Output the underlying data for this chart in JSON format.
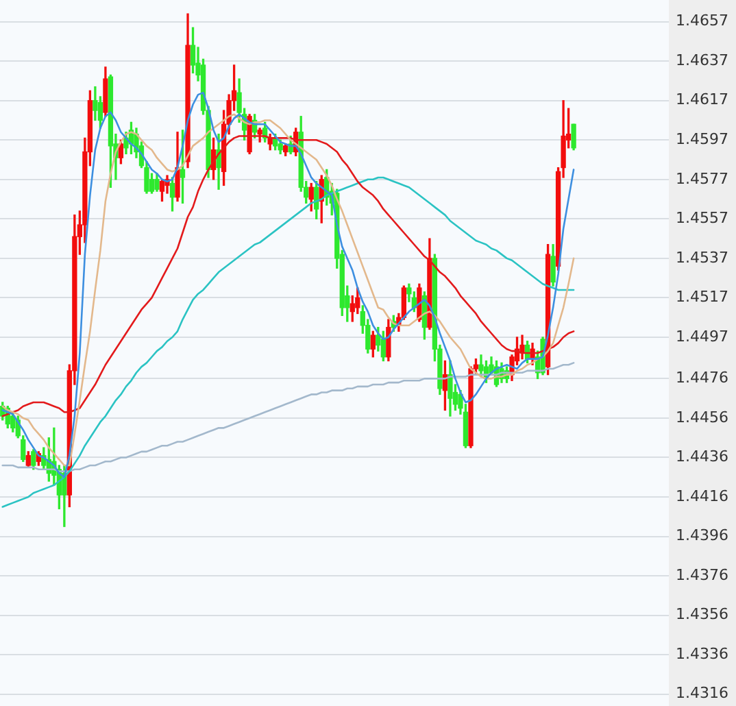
{
  "chart_data": {
    "type": "candlestick",
    "categories": [
      null,
      null,
      null,
      null,
      null,
      null,
      null,
      null,
      null,
      null,
      null,
      null,
      null,
      null,
      null,
      null,
      null,
      null,
      null,
      null,
      null,
      null,
      null,
      null,
      null,
      null,
      null,
      null,
      null,
      null,
      null,
      null,
      null,
      null,
      null,
      null,
      null,
      null,
      null,
      null,
      null,
      null,
      null,
      null,
      null,
      null,
      null,
      null,
      null,
      null,
      null,
      null,
      null,
      null,
      null,
      null,
      null,
      null,
      null,
      null,
      null,
      null,
      null,
      null,
      null,
      null,
      null,
      null,
      null,
      null,
      null,
      null,
      null,
      null,
      null,
      null,
      null,
      null,
      null,
      null,
      null,
      null,
      null,
      null,
      null,
      null,
      null,
      null,
      null,
      null,
      null,
      null,
      null,
      null,
      null,
      null,
      null,
      null,
      null,
      null,
      null,
      null,
      null,
      null,
      null,
      null,
      null,
      null,
      null,
      null,
      null,
      null,
      null,
      null,
      null,
      null,
      null,
      null,
      null,
      null,
      null,
      null,
      null,
      null,
      null,
      null,
      null,
      null,
      null,
      null
    ],
    "ohlc": [
      [
        1.4462,
        1.4464,
        1.4455,
        1.4457
      ],
      [
        1.4461,
        1.4462,
        1.4451,
        1.4453
      ],
      [
        1.4457,
        1.4459,
        1.4449,
        1.4451
      ],
      [
        1.4455,
        1.4457,
        1.4446,
        1.4447
      ],
      [
        1.4445,
        1.4447,
        1.4434,
        1.4435
      ],
      [
        1.4432,
        1.4439,
        1.4431,
        1.4437
      ],
      [
        1.4439,
        1.444,
        1.443,
        1.4432
      ],
      [
        1.4434,
        1.4439,
        1.4432,
        1.4438
      ],
      [
        1.4437,
        1.4441,
        1.443,
        1.4432
      ],
      [
        1.4435,
        1.4446,
        1.4424,
        1.4428
      ],
      [
        1.4434,
        1.4451,
        1.4422,
        1.4427
      ],
      [
        1.443,
        1.4432,
        1.441,
        1.4417
      ],
      [
        1.4428,
        1.4432,
        1.4401,
        1.4417
      ],
      [
        1.4417,
        1.4483,
        1.4411,
        1.448
      ],
      [
        1.448,
        1.4559,
        1.4473,
        1.4548
      ],
      [
        1.4548,
        1.4561,
        1.4539,
        1.4554
      ],
      [
        1.4554,
        1.4598,
        1.4545,
        1.4591
      ],
      [
        1.4591,
        1.4622,
        1.4584,
        1.4617
      ],
      [
        1.4617,
        1.4624,
        1.4607,
        1.4612
      ],
      [
        1.4616,
        1.4619,
        1.4603,
        1.4607
      ],
      [
        1.4611,
        1.4634,
        1.4609,
        1.4628
      ],
      [
        1.4629,
        1.463,
        1.4573,
        1.4594
      ],
      [
        1.4595,
        1.46,
        1.4577,
        1.4588
      ],
      [
        1.4588,
        1.4597,
        1.4585,
        1.4595
      ],
      [
        1.4598,
        1.4601,
        1.459,
        1.4593
      ],
      [
        1.4602,
        1.4606,
        1.459,
        1.4595
      ],
      [
        1.46,
        1.4603,
        1.4588,
        1.4591
      ],
      [
        1.4594,
        1.4596,
        1.4583,
        1.4584
      ],
      [
        1.4583,
        1.4586,
        1.457,
        1.4571
      ],
      [
        1.4577,
        1.458,
        1.457,
        1.4571
      ],
      [
        1.4577,
        1.458,
        1.4571,
        1.4572
      ],
      [
        1.4571,
        1.4577,
        1.4566,
        1.4576
      ],
      [
        1.4574,
        1.4579,
        1.457,
        1.4577
      ],
      [
        1.4575,
        1.4578,
        1.4561,
        1.4568
      ],
      [
        1.4568,
        1.4601,
        1.4566,
        1.4583
      ],
      [
        1.4582,
        1.4602,
        1.4565,
        1.4578
      ],
      [
        1.4586,
        1.4661,
        1.4583,
        1.4645
      ],
      [
        1.4645,
        1.4654,
        1.4631,
        1.4635
      ],
      [
        1.4636,
        1.4644,
        1.4627,
        1.463
      ],
      [
        1.4635,
        1.4638,
        1.461,
        1.4612
      ],
      [
        1.4612,
        1.4614,
        1.4578,
        1.4582
      ],
      [
        1.4582,
        1.4598,
        1.4577,
        1.4592
      ],
      [
        1.4592,
        1.46,
        1.4572,
        1.4583
      ],
      [
        1.4581,
        1.4612,
        1.4574,
        1.4605
      ],
      [
        1.4605,
        1.462,
        1.46,
        1.4617
      ],
      [
        1.4617,
        1.4635,
        1.4612,
        1.4622
      ],
      [
        1.4621,
        1.4628,
        1.4606,
        1.4611
      ],
      [
        1.461,
        1.4613,
        1.4597,
        1.4602
      ],
      [
        1.4591,
        1.461,
        1.459,
        1.4609
      ],
      [
        1.4607,
        1.461,
        1.4598,
        1.4601
      ],
      [
        1.46,
        1.4603,
        1.4596,
        1.4602
      ],
      [
        1.4603,
        1.4606,
        1.4596,
        1.4598
      ],
      [
        1.4595,
        1.46,
        1.4592,
        1.4598
      ],
      [
        1.4598,
        1.46,
        1.4592,
        1.4594
      ],
      [
        1.4595,
        1.4597,
        1.459,
        1.4592
      ],
      [
        1.4591,
        1.4595,
        1.4589,
        1.4594
      ],
      [
        1.4595,
        1.4599,
        1.459,
        1.4591
      ],
      [
        1.4591,
        1.4603,
        1.4589,
        1.4601
      ],
      [
        1.4601,
        1.4609,
        1.4571,
        1.4573
      ],
      [
        1.4573,
        1.4576,
        1.4565,
        1.4568
      ],
      [
        1.4567,
        1.4575,
        1.4561,
        1.4573
      ],
      [
        1.4573,
        1.4576,
        1.4557,
        1.4562
      ],
      [
        1.4566,
        1.4579,
        1.4555,
        1.4577
      ],
      [
        1.4578,
        1.4582,
        1.4564,
        1.4568
      ],
      [
        1.4571,
        1.4575,
        1.4559,
        1.4565
      ],
      [
        1.457,
        1.4572,
        1.4532,
        1.4537
      ],
      [
        1.4539,
        1.4541,
        1.4508,
        1.4512
      ],
      [
        1.4518,
        1.4523,
        1.4505,
        1.4512
      ],
      [
        1.451,
        1.4518,
        1.4505,
        1.4514
      ],
      [
        1.4512,
        1.4522,
        1.4509,
        1.4517
      ],
      [
        1.451,
        1.4513,
        1.4499,
        1.4503
      ],
      [
        1.4503,
        1.4506,
        1.4489,
        1.4491
      ],
      [
        1.4491,
        1.45,
        1.4487,
        1.4498
      ],
      [
        1.4498,
        1.4502,
        1.449,
        1.4493
      ],
      [
        1.4496,
        1.45,
        1.4485,
        1.4487
      ],
      [
        1.4487,
        1.4506,
        1.4485,
        1.4502
      ],
      [
        1.4505,
        1.4508,
        1.45,
        1.4502
      ],
      [
        1.4503,
        1.4509,
        1.45,
        1.4507
      ],
      [
        1.4507,
        1.4523,
        1.4506,
        1.4522
      ],
      [
        1.4522,
        1.4524,
        1.4515,
        1.4519
      ],
      [
        1.4517,
        1.452,
        1.451,
        1.4512
      ],
      [
        1.4506,
        1.4524,
        1.4505,
        1.4522
      ],
      [
        1.4518,
        1.452,
        1.4496,
        1.4502
      ],
      [
        1.4502,
        1.4547,
        1.4501,
        1.4537
      ],
      [
        1.4537,
        1.4539,
        1.4485,
        1.4491
      ],
      [
        1.4491,
        1.4493,
        1.4468,
        1.4471
      ],
      [
        1.447,
        1.4485,
        1.446,
        1.4478
      ],
      [
        1.4478,
        1.4485,
        1.4457,
        1.4466
      ],
      [
        1.4469,
        1.4473,
        1.446,
        1.4463
      ],
      [
        1.4468,
        1.447,
        1.4458,
        1.4461
      ],
      [
        1.4459,
        1.4463,
        1.4441,
        1.4442
      ],
      [
        1.4442,
        1.4482,
        1.4441,
        1.4481
      ],
      [
        1.4481,
        1.4486,
        1.4478,
        1.4483
      ],
      [
        1.4483,
        1.4488,
        1.4477,
        1.448
      ],
      [
        1.4482,
        1.4485,
        1.4474,
        1.4476
      ],
      [
        1.4483,
        1.4487,
        1.4478,
        1.4479
      ],
      [
        1.4482,
        1.4485,
        1.4472,
        1.4473
      ],
      [
        1.4481,
        1.4484,
        1.4474,
        1.4476
      ],
      [
        1.448,
        1.4482,
        1.4474,
        1.4476
      ],
      [
        1.4478,
        1.4488,
        1.4475,
        1.4487
      ],
      [
        1.4485,
        1.4497,
        1.4483,
        1.4491
      ],
      [
        1.4489,
        1.4498,
        1.4486,
        1.4493
      ],
      [
        1.4493,
        1.4495,
        1.4484,
        1.4486
      ],
      [
        1.4486,
        1.4494,
        1.4483,
        1.4491
      ],
      [
        1.4487,
        1.449,
        1.4476,
        1.4479
      ],
      [
        1.4496,
        1.4497,
        1.4478,
        1.4479
      ],
      [
        1.4482,
        1.4544,
        1.4478,
        1.4539
      ],
      [
        1.4538,
        1.4544,
        1.4523,
        1.4525
      ],
      [
        1.4533,
        1.4583,
        1.4531,
        1.4581
      ],
      [
        1.4583,
        1.4617,
        1.4578,
        1.4599
      ],
      [
        1.4597,
        1.4613,
        1.4593,
        1.46
      ],
      [
        1.4605,
        1.4605,
        1.4592,
        1.4593
      ],
      null,
      null,
      null,
      null,
      null,
      null,
      null,
      null,
      null,
      null,
      null,
      null,
      null,
      null,
      null,
      null,
      null,
      null
    ],
    "colors": [
      "#2ee82e",
      "#2ee82e",
      "#2ee82e",
      "#2ee82e",
      "#2ee82e",
      "#f20d0d",
      "#2ee82e",
      "#f20d0d",
      "#2ee82e",
      "#2ee82e",
      "#2ee82e",
      "#2ee82e",
      "#2ee82e",
      "#f20d0d",
      "#f20d0d",
      "#f20d0d",
      "#f20d0d",
      "#f20d0d",
      "#2ee82e",
      "#2ee82e",
      "#f20d0d",
      "#2ee82e",
      "#2ee82e",
      "#f20d0d",
      "#2ee82e",
      "#2ee82e",
      "#2ee82e",
      "#2ee82e",
      "#2ee82e",
      "#2ee82e",
      "#2ee82e",
      "#f20d0d",
      "#f20d0d",
      "#2ee82e",
      "#f20d0d",
      "#2ee82e",
      "#f20d0d",
      "#2ee82e",
      "#2ee82e",
      "#2ee82e",
      "#2ee82e",
      "#f20d0d",
      "#2ee82e",
      "#f20d0d",
      "#f20d0d",
      "#f20d0d",
      "#2ee82e",
      "#2ee82e",
      "#f20d0d",
      "#2ee82e",
      "#f20d0d",
      "#2ee82e",
      "#f20d0d",
      "#2ee82e",
      "#2ee82e",
      "#f20d0d",
      "#2ee82e",
      "#f20d0d",
      "#2ee82e",
      "#2ee82e",
      "#f20d0d",
      "#2ee82e",
      "#f20d0d",
      "#2ee82e",
      "#2ee82e",
      "#2ee82e",
      "#2ee82e",
      "#2ee82e",
      "#f20d0d",
      "#f20d0d",
      "#2ee82e",
      "#2ee82e",
      "#f20d0d",
      "#2ee82e",
      "#2ee82e",
      "#f20d0d",
      "#2ee82e",
      "#f20d0d",
      "#f20d0d",
      "#2ee82e",
      "#2ee82e",
      "#f20d0d",
      "#2ee82e",
      "#f20d0d",
      "#2ee82e",
      "#2ee82e",
      "#f20d0d",
      "#2ee82e",
      "#2ee82e",
      "#2ee82e",
      "#2ee82e",
      "#f20d0d",
      "#f20d0d",
      "#2ee82e",
      "#2ee82e",
      "#2ee82e",
      "#2ee82e",
      "#2ee82e",
      "#2ee82e",
      "#f20d0d",
      "#f20d0d",
      "#f20d0d",
      "#2ee82e",
      "#f20d0d",
      "#2ee82e",
      "#2ee82e",
      "#f20d0d",
      "#2ee82e",
      "#f20d0d",
      "#f20d0d",
      "#f20d0d",
      "#2ee82e",
      null,
      null,
      null,
      null,
      null,
      null,
      null,
      null,
      null,
      null,
      null,
      null,
      null,
      null,
      null,
      null,
      null,
      null
    ],
    "series": [
      {
        "type": "line",
        "color": "#a3b8cc",
        "values": [
          1.4432,
          1.4432,
          1.4432,
          1.4431,
          1.4431,
          1.4431,
          1.4431,
          1.443,
          1.443,
          1.443,
          1.443,
          1.4429,
          1.4429,
          1.4429,
          1.443,
          1.443,
          1.4431,
          1.4432,
          1.4432,
          1.4433,
          1.4434,
          1.4434,
          1.4435,
          1.4436,
          1.4436,
          1.4437,
          1.4438,
          1.4439,
          1.4439,
          1.444,
          1.4441,
          1.4442,
          1.4442,
          1.4443,
          1.4444,
          1.4444,
          1.4445,
          1.4446,
          1.4447,
          1.4448,
          1.4449,
          1.445,
          1.4451,
          1.4451,
          1.4452,
          1.4453,
          1.4454,
          1.4455,
          1.4456,
          1.4457,
          1.4458,
          1.4459,
          1.446,
          1.4461,
          1.4462,
          1.4463,
          1.4464,
          1.4465,
          1.4466,
          1.4467,
          1.4468,
          1.4468,
          1.4469,
          1.4469,
          1.447,
          1.447,
          1.447,
          1.4471,
          1.4471,
          1.4472,
          1.4472,
          1.4472,
          1.4473,
          1.4473,
          1.4473,
          1.4474,
          1.4474,
          1.4474,
          1.4475,
          1.4475,
          1.4475,
          1.4475,
          1.4476,
          1.4476,
          1.4476,
          1.4476,
          1.4476,
          1.4477,
          1.4477,
          1.4477,
          1.4477,
          1.4478,
          1.4478,
          1.4478,
          1.4478,
          1.4478,
          1.4478,
          1.4479,
          1.4479,
          1.4479,
          1.4479,
          1.4479,
          1.448,
          1.448,
          1.448,
          1.448,
          1.4481,
          1.4481,
          1.4482,
          1.4483,
          1.4483,
          1.4484,
          null,
          null,
          null,
          null,
          null,
          null,
          null,
          null,
          null,
          null,
          null,
          null,
          null,
          null,
          null,
          null,
          null,
          null
        ]
      },
      {
        "type": "line",
        "color": "#2bc3c3",
        "values": [
          1.4411,
          1.4412,
          1.4413,
          1.4414,
          1.4415,
          1.4416,
          1.4418,
          1.4419,
          1.442,
          1.4421,
          1.4422,
          1.4424,
          1.4426,
          1.4429,
          1.4433,
          1.4437,
          1.4442,
          1.4446,
          1.445,
          1.4454,
          1.4457,
          1.4461,
          1.4465,
          1.4468,
          1.4472,
          1.4475,
          1.4479,
          1.4482,
          1.4484,
          1.4487,
          1.449,
          1.4492,
          1.4495,
          1.4497,
          1.45,
          1.4506,
          1.4511,
          1.4516,
          1.4519,
          1.4521,
          1.4524,
          1.4527,
          1.453,
          1.4532,
          1.4534,
          1.4536,
          1.4538,
          1.454,
          1.4542,
          1.4544,
          1.4545,
          1.4547,
          1.4549,
          1.4551,
          1.4553,
          1.4555,
          1.4557,
          1.4559,
          1.4561,
          1.4563,
          1.4565,
          1.4566,
          1.4567,
          1.4569,
          1.457,
          1.4571,
          1.4572,
          1.4573,
          1.4574,
          1.4575,
          1.4576,
          1.4577,
          1.4577,
          1.4578,
          1.4578,
          1.4577,
          1.4576,
          1.4575,
          1.4574,
          1.4573,
          1.4571,
          1.4569,
          1.4567,
          1.4565,
          1.4563,
          1.4561,
          1.4559,
          1.4556,
          1.4554,
          1.4552,
          1.455,
          1.4548,
          1.4546,
          1.4545,
          1.4544,
          1.4542,
          1.4541,
          1.4539,
          1.4537,
          1.4536,
          1.4534,
          1.4532,
          1.453,
          1.4528,
          1.4526,
          1.4524,
          1.4523,
          1.4522,
          1.4521,
          1.4521,
          1.4521,
          1.4521,
          null,
          null,
          null,
          null,
          null,
          null,
          null,
          null,
          null,
          null,
          null,
          null,
          null,
          null,
          null,
          null,
          null,
          null
        ]
      },
      {
        "type": "line",
        "color": "#e31a1c",
        "values": [
          1.4457,
          1.4458,
          1.4459,
          1.446,
          1.4462,
          1.4463,
          1.4464,
          1.4464,
          1.4464,
          1.4463,
          1.4462,
          1.4461,
          1.4459,
          1.4459,
          1.446,
          1.4461,
          1.4465,
          1.4469,
          1.4473,
          1.4478,
          1.4483,
          1.4487,
          1.4491,
          1.4495,
          1.4499,
          1.4503,
          1.4507,
          1.4511,
          1.4514,
          1.4517,
          1.4522,
          1.4527,
          1.4532,
          1.4537,
          1.4542,
          1.455,
          1.4558,
          1.4563,
          1.4571,
          1.4577,
          1.4582,
          1.4586,
          1.459,
          1.4593,
          1.4596,
          1.4598,
          1.4599,
          1.4599,
          1.4599,
          1.4599,
          1.4599,
          1.4599,
          1.4598,
          1.4598,
          1.4598,
          1.4598,
          1.4598,
          1.4597,
          1.4597,
          1.4597,
          1.4597,
          1.4597,
          1.4596,
          1.4595,
          1.4593,
          1.4591,
          1.4587,
          1.4584,
          1.458,
          1.4576,
          1.4573,
          1.4571,
          1.4569,
          1.4566,
          1.4562,
          1.4559,
          1.4556,
          1.4553,
          1.455,
          1.4547,
          1.4544,
          1.4541,
          1.4538,
          1.4536,
          1.4533,
          1.453,
          1.4528,
          1.4525,
          1.4522,
          1.4518,
          1.4515,
          1.4512,
          1.4509,
          1.4505,
          1.4502,
          1.4499,
          1.4496,
          1.4493,
          1.4491,
          1.449,
          1.449,
          1.4489,
          1.4489,
          1.4489,
          1.4489,
          1.449,
          1.4491,
          1.4492,
          1.4494,
          1.4497,
          1.4499,
          1.45,
          null,
          null,
          null,
          null,
          null,
          null,
          null,
          null,
          null,
          null,
          null,
          null,
          null,
          null,
          null,
          null,
          null,
          null
        ]
      },
      {
        "type": "line",
        "color": "#e3b88c",
        "values": [
          1.4462,
          1.446,
          1.4459,
          1.4458,
          1.4456,
          1.4455,
          1.4451,
          1.4448,
          1.4445,
          1.4441,
          1.4438,
          1.4435,
          1.4432,
          1.4432,
          1.4448,
          1.4465,
          1.4483,
          1.45,
          1.4521,
          1.4541,
          1.4566,
          1.458,
          1.4591,
          1.4596,
          1.46,
          1.4601,
          1.46,
          1.4597,
          1.4594,
          1.4592,
          1.4588,
          1.4585,
          1.4582,
          1.4581,
          1.4582,
          1.4584,
          1.4589,
          1.4594,
          1.4596,
          1.4598,
          1.4601,
          1.4603,
          1.4605,
          1.4607,
          1.4609,
          1.461,
          1.4608,
          1.4606,
          1.4605,
          1.4606,
          1.4606,
          1.4607,
          1.4607,
          1.4605,
          1.4603,
          1.46,
          1.4597,
          1.4595,
          1.4593,
          1.4591,
          1.4589,
          1.4587,
          1.4583,
          1.4579,
          1.4574,
          1.4567,
          1.4561,
          1.4554,
          1.4547,
          1.454,
          1.4533,
          1.4526,
          1.4519,
          1.4512,
          1.4511,
          1.4507,
          1.4504,
          1.4503,
          1.4503,
          1.4503,
          1.4505,
          1.4507,
          1.4509,
          1.451,
          1.4508,
          1.4505,
          1.4501,
          1.4497,
          1.4494,
          1.4491,
          1.4486,
          1.4481,
          1.4479,
          1.4477,
          1.4476,
          1.4476,
          1.4477,
          1.4477,
          1.4478,
          1.4478,
          1.448,
          1.4481,
          1.4483,
          1.4484,
          1.4486,
          1.4487,
          1.449,
          1.4494,
          1.4503,
          1.4512,
          1.4524,
          1.4537,
          null,
          null,
          null,
          null,
          null,
          null,
          null,
          null,
          null,
          null,
          null,
          null,
          null,
          null,
          null,
          null,
          null,
          null
        ]
      },
      {
        "type": "line",
        "color": "#3d8fe0",
        "values": [
          1.446,
          1.4459,
          1.4458,
          1.4454,
          1.445,
          1.4445,
          1.4441,
          1.4437,
          1.4436,
          1.4434,
          1.4432,
          1.4428,
          1.4426,
          1.4437,
          1.4457,
          1.4489,
          1.4539,
          1.4569,
          1.4592,
          1.4603,
          1.4609,
          1.4611,
          1.4607,
          1.4601,
          1.4598,
          1.4595,
          1.4593,
          1.459,
          1.4586,
          1.4582,
          1.458,
          1.4577,
          1.4576,
          1.4577,
          1.4583,
          1.4594,
          1.4607,
          1.4615,
          1.462,
          1.4621,
          1.4613,
          1.4602,
          1.4596,
          1.4598,
          1.4604,
          1.4608,
          1.461,
          1.4608,
          1.4606,
          1.4605,
          1.4605,
          1.4605,
          1.4602,
          1.4599,
          1.4596,
          1.4595,
          1.4594,
          1.4594,
          1.459,
          1.4584,
          1.4578,
          1.4575,
          1.4573,
          1.4571,
          1.4569,
          1.4554,
          1.4543,
          1.4537,
          1.4531,
          1.4522,
          1.4515,
          1.451,
          1.4503,
          1.4499,
          1.4496,
          1.4497,
          1.4501,
          1.4504,
          1.4507,
          1.451,
          1.4512,
          1.4514,
          1.4516,
          1.4513,
          1.4507,
          1.4499,
          1.4492,
          1.4485,
          1.4476,
          1.4469,
          1.4464,
          1.4465,
          1.4468,
          1.4472,
          1.4476,
          1.4479,
          1.4481,
          1.4482,
          1.4483,
          1.4482,
          1.4481,
          1.4484,
          1.4486,
          1.4486,
          1.4486,
          1.4487,
          1.4498,
          1.4512,
          1.4529,
          1.4552,
          1.4567,
          1.4582,
          null,
          null,
          null,
          null,
          null,
          null,
          null,
          null,
          null,
          null,
          null,
          null,
          null,
          null,
          null,
          null,
          null,
          null
        ]
      }
    ],
    "ylim": [
      1.431,
      1.4668
    ],
    "yticks": [
      1.4316,
      1.4336,
      1.4356,
      1.4376,
      1.4396,
      1.4416,
      1.4436,
      1.4456,
      1.4476,
      1.4497,
      1.4517,
      1.4537,
      1.4557,
      1.4577,
      1.4597,
      1.4617,
      1.4637,
      1.4657
    ],
    "grid": "y",
    "marker": "none"
  }
}
